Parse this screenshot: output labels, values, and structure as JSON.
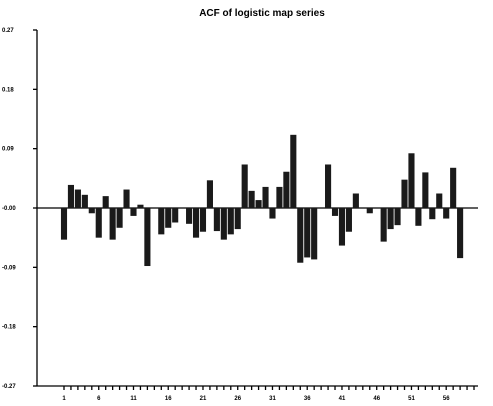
{
  "chart_data": {
    "type": "bar",
    "title": "ACF of logistic map series",
    "xlabel": "",
    "ylabel": "",
    "ylim": [
      -0.27,
      0.27
    ],
    "yticks": [
      0.27,
      0.18,
      0.09,
      -0.0,
      -0.09,
      -0.18,
      -0.27
    ],
    "ytick_labels": [
      "0.27",
      "0.18",
      "0.09",
      "-0.00",
      "-0.09",
      "-0.18",
      "-0.27"
    ],
    "xtick_labels": [
      "1",
      "6",
      "11",
      "16",
      "21",
      "26",
      "31",
      "36",
      "41",
      "46",
      "51",
      "56"
    ],
    "x": [
      1,
      2,
      3,
      4,
      5,
      6,
      7,
      8,
      9,
      10,
      11,
      12,
      13,
      14,
      15,
      16,
      17,
      18,
      19,
      20,
      21,
      22,
      23,
      24,
      25,
      26,
      27,
      28,
      29,
      30,
      31,
      32,
      33,
      34,
      35,
      36,
      37,
      38,
      39,
      40,
      41,
      42,
      43,
      44,
      45,
      46,
      47,
      48,
      49,
      50,
      51,
      52,
      53,
      54,
      55,
      56,
      57,
      58,
      59,
      60
    ],
    "values": [
      -0.048,
      0.035,
      0.028,
      0.02,
      -0.008,
      -0.045,
      0.018,
      -0.048,
      -0.03,
      0.028,
      -0.012,
      0.005,
      -0.088,
      0.0,
      -0.04,
      -0.03,
      -0.022,
      0.0,
      -0.024,
      -0.045,
      -0.036,
      0.042,
      -0.035,
      -0.048,
      -0.04,
      -0.032,
      0.066,
      0.026,
      0.012,
      0.032,
      -0.016,
      0.032,
      0.055,
      0.111,
      -0.083,
      -0.075,
      -0.078,
      0.0,
      0.066,
      -0.012,
      -0.057,
      -0.036,
      0.022,
      0.0,
      -0.008,
      0.0,
      -0.051,
      -0.032,
      -0.026,
      0.043,
      0.083,
      -0.027,
      0.054,
      -0.017,
      0.022,
      -0.016,
      0.061,
      -0.076,
      0.0,
      0.0
    ],
    "grid": false,
    "legend": "none"
  }
}
